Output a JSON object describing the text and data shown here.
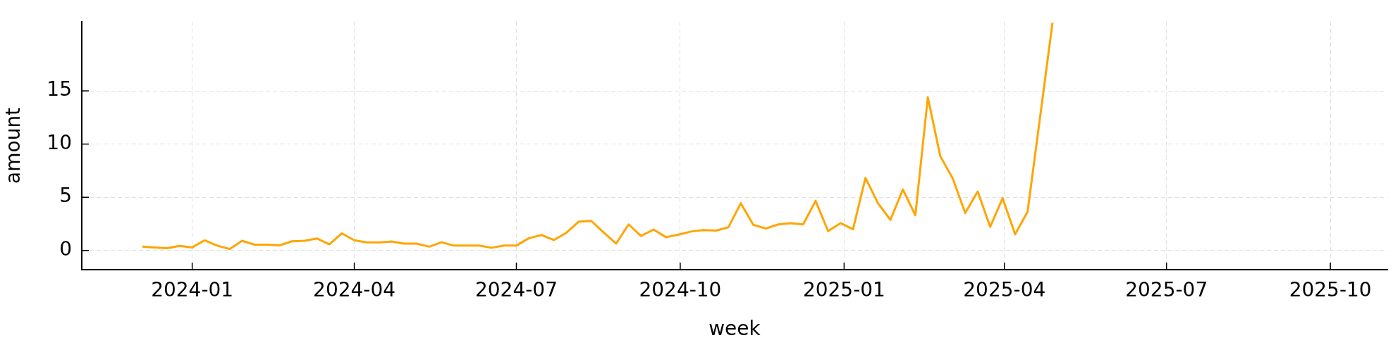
{
  "chart_data": {
    "type": "line",
    "xlabel": "week",
    "ylabel": "amount",
    "x": [
      "2023-12-04",
      "2023-12-11",
      "2023-12-18",
      "2023-12-25",
      "2024-01-01",
      "2024-01-08",
      "2024-01-15",
      "2024-01-22",
      "2024-01-29",
      "2024-02-05",
      "2024-02-12",
      "2024-02-19",
      "2024-02-26",
      "2024-03-04",
      "2024-03-11",
      "2024-03-18",
      "2024-03-25",
      "2024-04-01",
      "2024-04-08",
      "2024-04-15",
      "2024-04-22",
      "2024-04-29",
      "2024-05-06",
      "2024-05-13",
      "2024-05-20",
      "2024-05-27",
      "2024-06-03",
      "2024-06-10",
      "2024-06-17",
      "2024-06-24",
      "2024-07-01",
      "2024-07-08",
      "2024-07-15",
      "2024-07-22",
      "2024-07-29",
      "2024-08-05",
      "2024-08-12",
      "2024-08-19",
      "2024-08-26",
      "2024-09-02",
      "2024-09-09",
      "2024-09-16",
      "2024-09-23",
      "2024-09-30",
      "2024-10-07",
      "2024-10-14",
      "2024-10-21",
      "2024-10-28",
      "2024-11-04",
      "2024-11-11",
      "2024-11-18",
      "2024-11-25",
      "2024-12-02",
      "2024-12-09",
      "2024-12-16",
      "2024-12-23",
      "2024-12-30",
      "2025-01-06",
      "2025-01-13",
      "2025-01-20",
      "2025-01-27",
      "2025-02-03",
      "2025-02-10",
      "2025-02-17",
      "2025-02-24",
      "2025-03-03",
      "2025-03-10",
      "2025-03-17",
      "2025-03-24",
      "2025-03-31",
      "2025-04-07",
      "2025-04-14",
      "2025-04-21",
      "2025-04-28"
    ],
    "series": [
      {
        "color": "#ffa500",
        "values": [
          0.36,
          0.29,
          0.22,
          0.43,
          0.29,
          0.96,
          0.46,
          0.14,
          0.91,
          0.55,
          0.55,
          0.48,
          0.86,
          0.91,
          1.13,
          0.58,
          1.61,
          0.96,
          0.77,
          0.77,
          0.84,
          0.65,
          0.65,
          0.36,
          0.77,
          0.46,
          0.46,
          0.46,
          0.26,
          0.46,
          0.46,
          1.15,
          1.46,
          0.98,
          1.66,
          2.71,
          2.78,
          1.7,
          0.65,
          2.45,
          1.37,
          1.97,
          1.25,
          1.49,
          1.78,
          1.92,
          1.87,
          2.18,
          4.44,
          2.42,
          2.06,
          2.45,
          2.57,
          2.45,
          4.66,
          1.82,
          2.57,
          1.99,
          6.82,
          4.44,
          2.88,
          5.74,
          3.31,
          14.4,
          8.86,
          6.77,
          3.52,
          5.54,
          2.22,
          4.92,
          1.52,
          3.64,
          12.5,
          21.4
        ]
      }
    ],
    "xlim": [
      "2023-10-31",
      "2025-11-02"
    ],
    "xticks": [
      "2024-01",
      "2024-04",
      "2024-07",
      "2024-10",
      "2025-01",
      "2025-04",
      "2025-07",
      "2025-10"
    ],
    "ylim": [
      -1.8,
      21.5
    ],
    "yticks": [
      0,
      5,
      10,
      15
    ],
    "grid": true,
    "line_style": "solid",
    "marker": "none",
    "legend": false
  }
}
